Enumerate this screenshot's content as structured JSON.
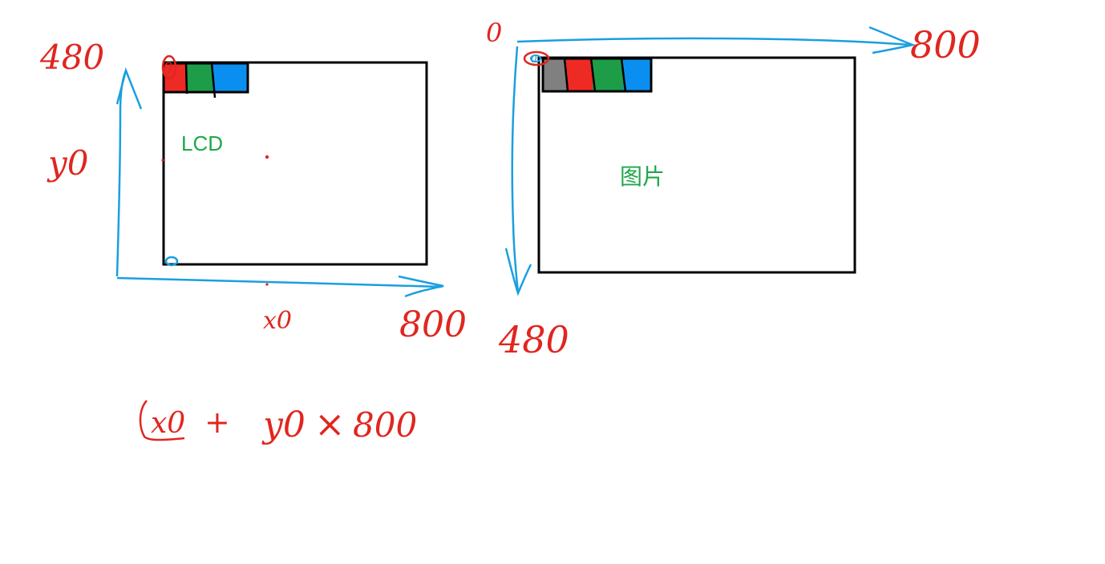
{
  "colors": {
    "ink_red": "#e0261f",
    "ink_blue": "#1a9fe0",
    "label_green": "#1ea74a",
    "box_stroke": "#000000",
    "pixel_red": "#ee2a24",
    "pixel_green": "#1e9d48",
    "pixel_blue": "#0a8ff0",
    "pixel_gray": "#808080"
  },
  "left_diagram": {
    "label": "LCD",
    "y_axis_top_label": "480",
    "y_label": "y0",
    "x_label": "x0",
    "x_axis_end_label": "800",
    "origin_marker": "0",
    "pixel_strip": [
      "red",
      "green",
      "blue"
    ]
  },
  "right_diagram": {
    "label": "图片",
    "origin_label": "0",
    "x_axis_end_label": "800",
    "y_axis_end_label": "480",
    "origin_marker": "0",
    "pixel_strip": [
      "gray",
      "red",
      "green",
      "blue"
    ]
  },
  "formula": {
    "x_term": "x0",
    "plus": "+",
    "y_term": "y0",
    "times": "×",
    "width": "800"
  }
}
